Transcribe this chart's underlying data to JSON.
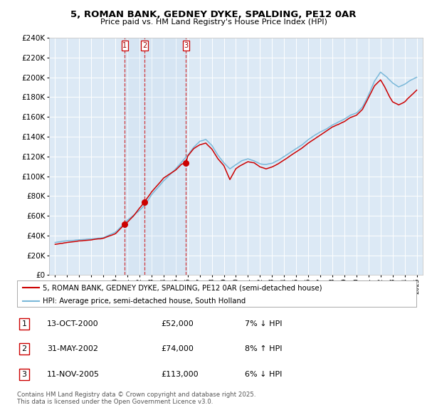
{
  "title": "5, ROMAN BANK, GEDNEY DYKE, SPALDING, PE12 0AR",
  "subtitle": "Price paid vs. HM Land Registry's House Price Index (HPI)",
  "legend_line1": "5, ROMAN BANK, GEDNEY DYKE, SPALDING, PE12 0AR (semi-detached house)",
  "legend_line2": "HPI: Average price, semi-detached house, South Holland",
  "transactions": [
    {
      "num": 1,
      "date": "13-OCT-2000",
      "price": 52000,
      "pct": "7%",
      "dir": "↓",
      "x_year": 2000.78
    },
    {
      "num": 2,
      "date": "31-MAY-2002",
      "price": 74000,
      "pct": "8%",
      "dir": "↑",
      "x_year": 2002.41
    },
    {
      "num": 3,
      "date": "11-NOV-2005",
      "price": 113000,
      "pct": "6%",
      "dir": "↓",
      "x_year": 2005.86
    }
  ],
  "footer": "Contains HM Land Registry data © Crown copyright and database right 2025.\nThis data is licensed under the Open Government Licence v3.0.",
  "hpi_color": "#7ab8d9",
  "price_color": "#cc0000",
  "plot_bg": "#dce9f5",
  "ylim": [
    0,
    240000
  ],
  "yticks": [
    0,
    20000,
    40000,
    60000,
    80000,
    100000,
    120000,
    140000,
    160000,
    180000,
    200000,
    220000,
    240000
  ],
  "xlim_start": 1994.5,
  "xlim_end": 2025.5,
  "xticks": [
    1995,
    1996,
    1997,
    1998,
    1999,
    2000,
    2001,
    2002,
    2003,
    2004,
    2005,
    2006,
    2007,
    2008,
    2009,
    2010,
    2011,
    2012,
    2013,
    2014,
    2015,
    2016,
    2017,
    2018,
    2019,
    2020,
    2021,
    2022,
    2023,
    2024,
    2025
  ]
}
